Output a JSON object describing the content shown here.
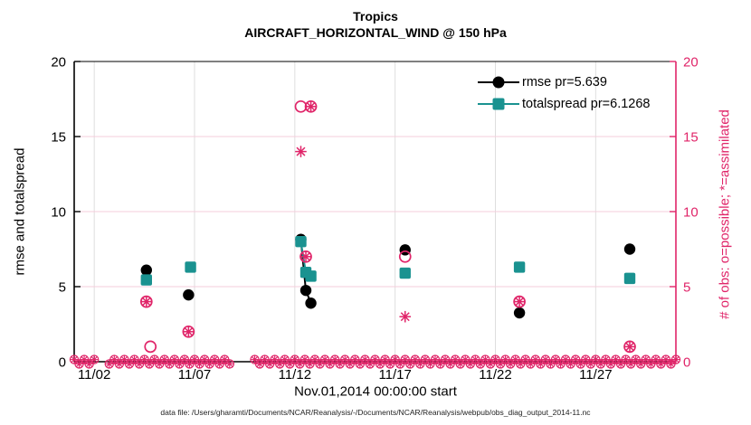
{
  "colors": {
    "rmse": "#000000",
    "totalspread": "#1a9290",
    "obs": "#e02569",
    "grid_vertical": "#dedede",
    "grid_horizontal": "#f6ccdb"
  },
  "footer": "data file: /Users/gharamti/Documents/NCAR/Reanalysis/-/Documents/NCAR/Reanalysis/webpub/obs_diag_output_2014-11.nc",
  "chart_data": {
    "type": "scatter",
    "title": "Tropics",
    "subtitle": "AIRCRAFT_HORIZONTAL_WIND @ 150 hPa",
    "xlabel": "Nov.01,2014 00:00:00 start",
    "ylabel_left": "rmse and totalspread",
    "ylabel_right": "# of obs: o=possible; *=assimilated",
    "xlim_days": [
      1,
      31
    ],
    "ylim": [
      0,
      20
    ],
    "yticks": [
      0,
      5,
      10,
      15,
      20
    ],
    "ygrid": [
      5,
      10,
      15
    ],
    "xticks": [
      {
        "day": 2,
        "label": "11/02"
      },
      {
        "day": 7,
        "label": "11/07"
      },
      {
        "day": 12,
        "label": "11/12"
      },
      {
        "day": 17,
        "label": "11/17"
      },
      {
        "day": 22,
        "label": "11/22"
      },
      {
        "day": 27,
        "label": "11/27"
      }
    ],
    "legend": [
      {
        "label": "rmse pr=5.639",
        "series": "rmse"
      },
      {
        "label": "totalspread pr=6.1268",
        "series": "totalspread"
      }
    ],
    "series": {
      "rmse": {
        "marker": "filled-circle",
        "points": [
          [
            4.6,
            6.1
          ],
          [
            6.7,
            4.45
          ],
          [
            12.3,
            8.15
          ],
          [
            12.55,
            4.75
          ],
          [
            12.8,
            3.9
          ],
          [
            17.5,
            7.45
          ],
          [
            23.2,
            3.25
          ],
          [
            28.7,
            7.5
          ]
        ]
      },
      "totalspread": {
        "marker": "filled-square",
        "points": [
          [
            4.6,
            5.45
          ],
          [
            6.8,
            6.3
          ],
          [
            12.3,
            8.0
          ],
          [
            12.55,
            5.95
          ],
          [
            12.8,
            5.7
          ],
          [
            17.5,
            5.9
          ],
          [
            23.2,
            6.3
          ],
          [
            28.7,
            5.55
          ]
        ]
      },
      "possible": {
        "marker": "open-circle",
        "points": [
          [
            4.6,
            4
          ],
          [
            4.8,
            1
          ],
          [
            6.7,
            2
          ],
          [
            12.3,
            17
          ],
          [
            12.55,
            7
          ],
          [
            12.8,
            17
          ],
          [
            17.5,
            7
          ],
          [
            23.2,
            4
          ],
          [
            28.7,
            1
          ]
        ]
      },
      "assimilated": {
        "marker": "asterisk",
        "points": [
          [
            4.6,
            4
          ],
          [
            6.7,
            2
          ],
          [
            12.3,
            14
          ],
          [
            12.55,
            7
          ],
          [
            12.8,
            17
          ],
          [
            17.5,
            3
          ],
          [
            23.2,
            4
          ],
          [
            28.7,
            1
          ]
        ]
      }
    },
    "zero_obs_row": {
      "value": 0,
      "start": 1.0,
      "end": 31.0,
      "step": 0.25,
      "gaps": [
        [
          2.15,
          2.5
        ],
        [
          8.9,
          9.8
        ]
      ]
    }
  }
}
